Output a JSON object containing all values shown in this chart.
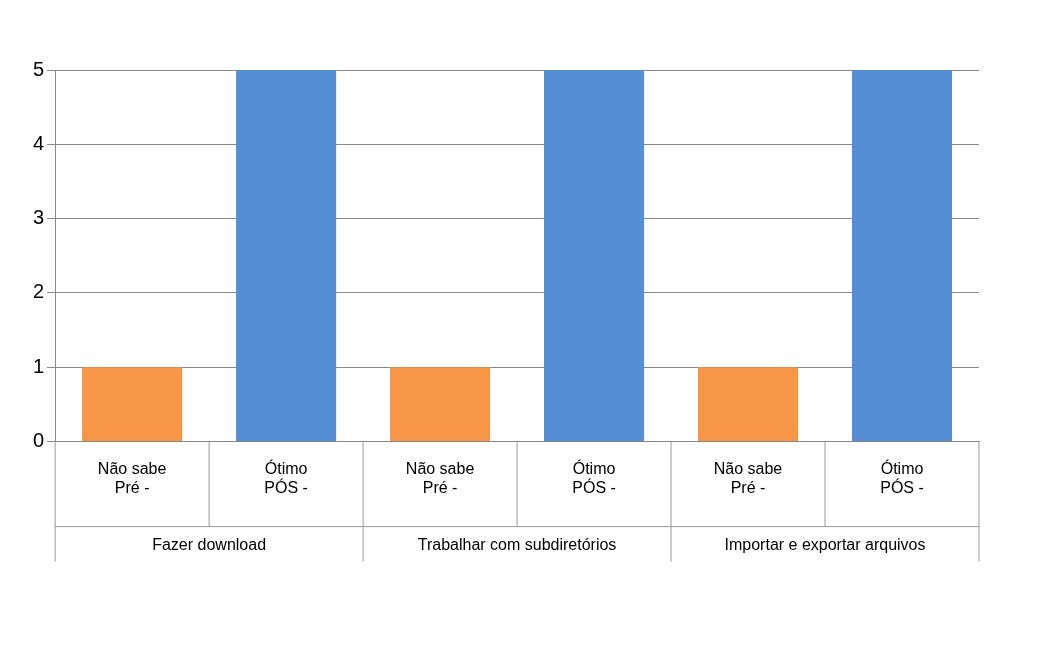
{
  "chart_data": {
    "type": "bar",
    "categories": [
      "Não sabe\nPré -",
      "Ótimo\nPÓS -",
      "Não sabe\nPré -",
      "Ótimo\nPÓS -",
      "Não sabe\nPré -",
      "Ótimo\nPÓS -"
    ],
    "values": [
      1,
      5,
      1,
      5,
      1,
      5
    ],
    "colors": [
      "#f79646",
      "#558ed5",
      "#f79646",
      "#558ed5",
      "#f79646",
      "#558ed5"
    ],
    "annotations": [
      "Fazer download",
      "Trabalhar com subdiretórios",
      "Importar e exportar arquivos"
    ],
    "ylim": [
      0,
      5
    ],
    "yticks": [
      0,
      1,
      2,
      3,
      4,
      5
    ],
    "grid": "y",
    "legend": false
  }
}
